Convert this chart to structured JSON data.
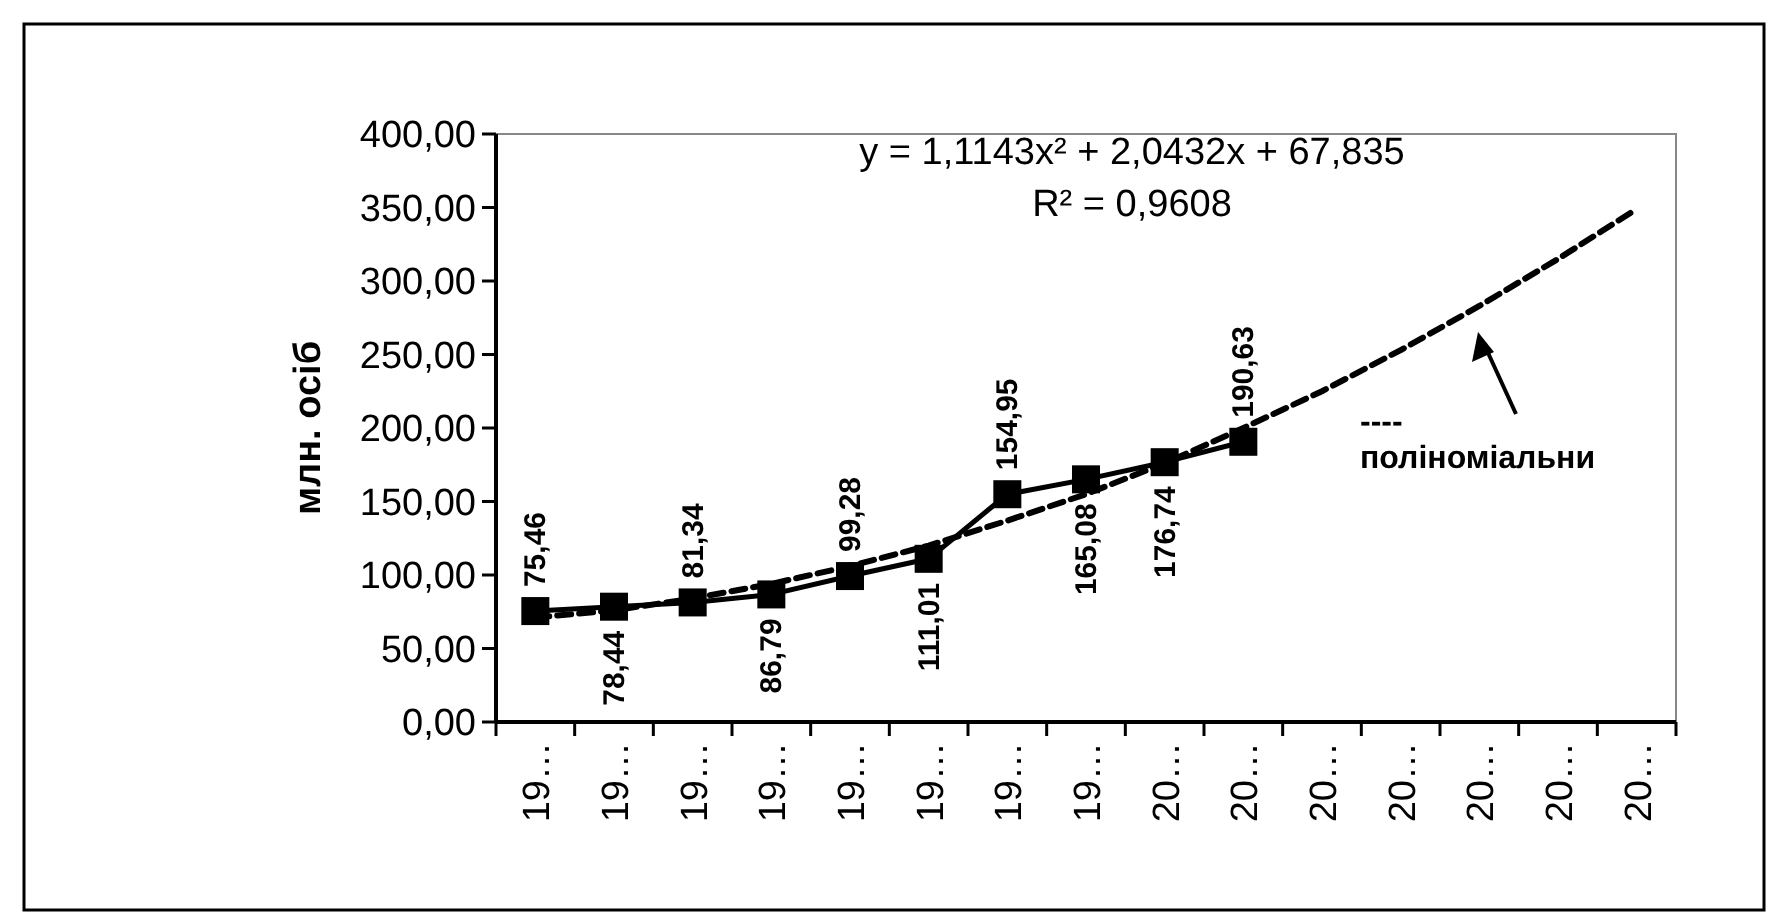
{
  "chart_data": {
    "type": "line",
    "ylabel": "млн. осіб",
    "categories": [
      "19…",
      "19…",
      "19…",
      "19…",
      "19…",
      "19…",
      "19…",
      "19…",
      "20…",
      "20…",
      "20…",
      "20…",
      "20…",
      "20…",
      "20…"
    ],
    "series": [
      {
        "color": "#000000",
        "marker": "square",
        "line_style": "solid",
        "values": [
          75.46,
          78.44,
          81.34,
          86.79,
          99.28,
          111.01,
          154.95,
          165.08,
          176.74,
          190.63,
          null,
          null,
          null,
          null,
          null
        ],
        "value_labels": [
          "75,46",
          "78,44",
          "81,34",
          "86,79",
          "99,28",
          "111,01",
          "154,95",
          "165,08",
          "176,74",
          "190,63",
          null,
          null,
          null,
          null,
          null
        ]
      },
      {
        "color": "#000000",
        "marker": "none",
        "line_style": "dashed",
        "values": [
          71,
          76,
          84,
          94,
          106,
          120,
          137,
          155,
          176,
          200,
          225,
          253,
          283,
          315,
          349
        ]
      }
    ],
    "ylim": [
      0,
      400
    ],
    "yticks": [
      {
        "value": 0,
        "label": "0,00"
      },
      {
        "value": 50,
        "label": "50,00"
      },
      {
        "value": 100,
        "label": "100,00"
      },
      {
        "value": 150,
        "label": "150,00"
      },
      {
        "value": 200,
        "label": "200,00"
      },
      {
        "value": 250,
        "label": "250,00"
      },
      {
        "value": 300,
        "label": "300,00"
      },
      {
        "value": 350,
        "label": "350,00"
      },
      {
        "value": 400,
        "label": "400,00"
      }
    ],
    "grid": false,
    "annotations": [
      "y = 1,1143x² + 2,0432x + 67,835",
      "R² = 0,9608",
      "---- поліноміальни"
    ]
  }
}
